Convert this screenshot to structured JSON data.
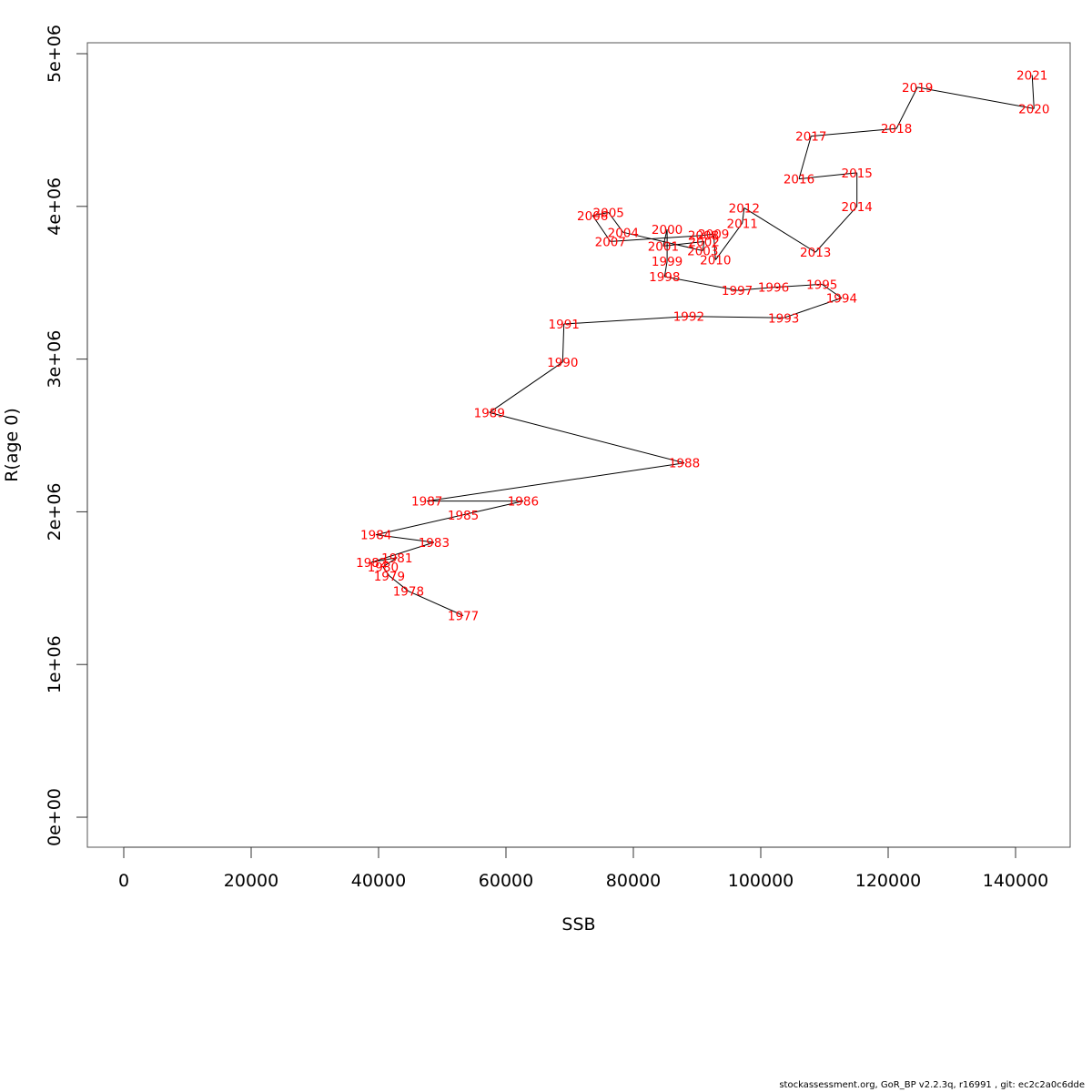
{
  "chart_data": {
    "type": "line",
    "title": "",
    "xlabel": "SSB",
    "ylabel": "R(age 0)",
    "xlim": [
      -5714,
      148571
    ],
    "ylim": [
      -196429,
      5071429
    ],
    "x_ticks": [
      0,
      20000,
      40000,
      60000,
      80000,
      100000,
      120000,
      140000
    ],
    "x_tick_labels": [
      "0",
      "20000",
      "40000",
      "60000",
      "80000",
      "100000",
      "120000",
      "140000"
    ],
    "y_ticks": [
      0,
      1000000,
      2000000,
      3000000,
      4000000,
      5000000
    ],
    "y_tick_labels": [
      "0e+00",
      "1e+06",
      "2e+06",
      "3e+06",
      "4e+06",
      "5e+06"
    ],
    "grid": false,
    "line_color": "#000000",
    "label_color": "#ff0000",
    "points": [
      {
        "label": "1977",
        "x": 53300,
        "y": 1320000
      },
      {
        "label": "1978",
        "x": 44700,
        "y": 1480000
      },
      {
        "label": "1979",
        "x": 41700,
        "y": 1580000
      },
      {
        "label": "1980",
        "x": 40700,
        "y": 1640000
      },
      {
        "label": "1981",
        "x": 42900,
        "y": 1700000
      },
      {
        "label": "1982",
        "x": 38900,
        "y": 1670000
      },
      {
        "label": "1983",
        "x": 48700,
        "y": 1800000
      },
      {
        "label": "1984",
        "x": 39600,
        "y": 1850000
      },
      {
        "label": "1985",
        "x": 53300,
        "y": 1980000
      },
      {
        "label": "1986",
        "x": 62700,
        "y": 2070000
      },
      {
        "label": "1987",
        "x": 47600,
        "y": 2070000
      },
      {
        "label": "1988",
        "x": 88000,
        "y": 2320000
      },
      {
        "label": "1989",
        "x": 57400,
        "y": 2650000
      },
      {
        "label": "1990",
        "x": 68900,
        "y": 2980000
      },
      {
        "label": "1991",
        "x": 69100,
        "y": 3230000
      },
      {
        "label": "1992",
        "x": 88700,
        "y": 3280000
      },
      {
        "label": "1993",
        "x": 103600,
        "y": 3270000
      },
      {
        "label": "1994",
        "x": 112700,
        "y": 3400000
      },
      {
        "label": "1995",
        "x": 109600,
        "y": 3490000
      },
      {
        "label": "1996",
        "x": 102000,
        "y": 3470000
      },
      {
        "label": "1997",
        "x": 96300,
        "y": 3450000
      },
      {
        "label": "1998",
        "x": 84900,
        "y": 3540000
      },
      {
        "label": "1999",
        "x": 85300,
        "y": 3640000
      },
      {
        "label": "2000",
        "x": 85300,
        "y": 3850000
      },
      {
        "label": "2001",
        "x": 84700,
        "y": 3740000
      },
      {
        "label": "2002",
        "x": 91100,
        "y": 3770000
      },
      {
        "label": "2003",
        "x": 90900,
        "y": 3710000
      },
      {
        "label": "2004",
        "x": 78400,
        "y": 3830000
      },
      {
        "label": "2005",
        "x": 76100,
        "y": 3960000
      },
      {
        "label": "2006",
        "x": 73600,
        "y": 3940000
      },
      {
        "label": "2007",
        "x": 76400,
        "y": 3770000
      },
      {
        "label": "2008",
        "x": 91000,
        "y": 3810000
      },
      {
        "label": "2009",
        "x": 92600,
        "y": 3820000
      },
      {
        "label": "2010",
        "x": 92900,
        "y": 3650000
      },
      {
        "label": "2011",
        "x": 97100,
        "y": 3890000
      },
      {
        "label": "2012",
        "x": 97400,
        "y": 3990000
      },
      {
        "label": "2013",
        "x": 108600,
        "y": 3700000
      },
      {
        "label": "2014",
        "x": 115100,
        "y": 4000000
      },
      {
        "label": "2015",
        "x": 115100,
        "y": 4220000
      },
      {
        "label": "2016",
        "x": 106000,
        "y": 4180000
      },
      {
        "label": "2017",
        "x": 107900,
        "y": 4460000
      },
      {
        "label": "2018",
        "x": 121300,
        "y": 4510000
      },
      {
        "label": "2019",
        "x": 124600,
        "y": 4780000
      },
      {
        "label": "2020",
        "x": 142900,
        "y": 4640000
      },
      {
        "label": "2021",
        "x": 142600,
        "y": 4860000
      }
    ]
  },
  "footer": "stockassessment.org, GoR_BP  v2.2.3q, r16991 , git: ec2c2a0c6dde"
}
